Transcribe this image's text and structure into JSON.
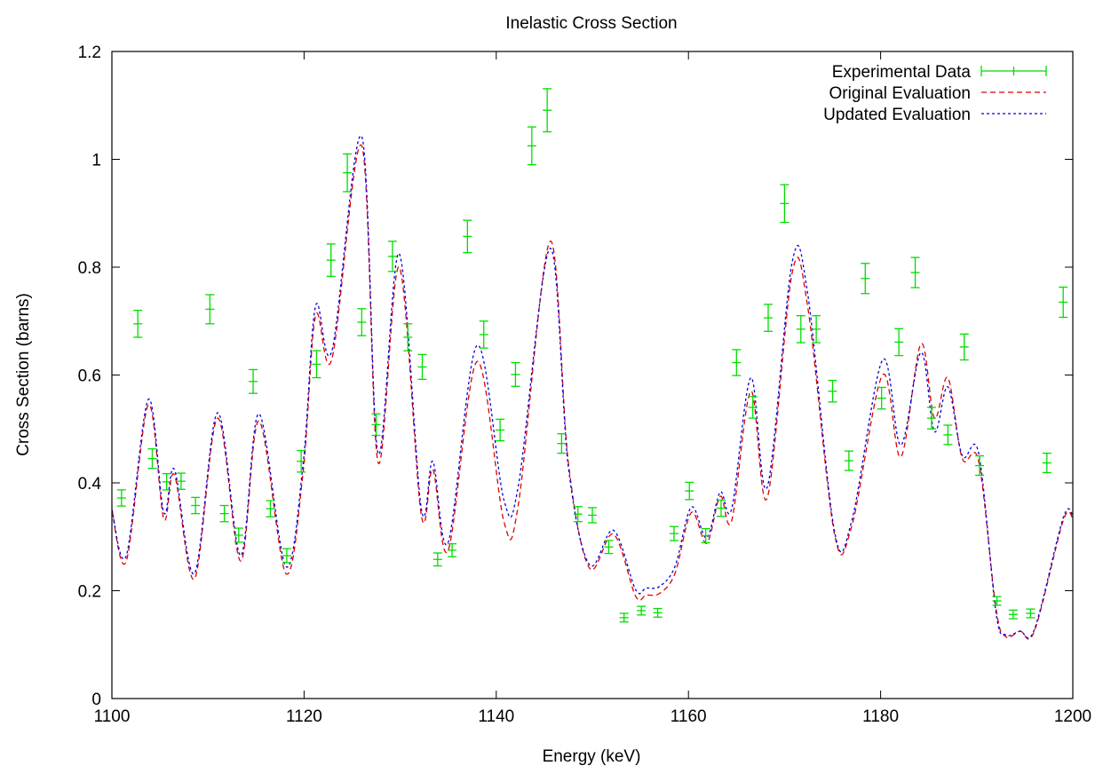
{
  "chart_data": {
    "type": "line",
    "title": "Inelastic Cross Section",
    "xlabel": "Energy (keV)",
    "ylabel": "Cross Section (barns)",
    "xlim": [
      1100,
      1200
    ],
    "ylim": [
      0,
      1.2
    ],
    "x_ticks": [
      1100,
      1120,
      1140,
      1160,
      1180,
      1200
    ],
    "x_tick_labels": [
      "1100",
      "1120",
      "1140",
      "1160",
      "1180",
      "1200"
    ],
    "y_ticks": [
      0,
      0.2,
      0.4,
      0.6,
      0.8,
      1.0,
      1.2
    ],
    "y_tick_labels": [
      "0",
      "0.2",
      "0.4",
      "0.6",
      "0.8",
      "1",
      "1.2"
    ],
    "grid": false,
    "legend_position": "top-right",
    "colors": {
      "experimental": "#00dd00",
      "original": "#e00000",
      "updated": "#0000e0"
    },
    "series": [
      {
        "name": "Experimental Data",
        "style": "errorbars",
        "points": [
          [
            1101.0,
            0.372,
            0.015
          ],
          [
            1102.7,
            0.695,
            0.025
          ],
          [
            1104.2,
            0.445,
            0.018
          ],
          [
            1105.7,
            0.402,
            0.015
          ],
          [
            1107.2,
            0.403,
            0.015
          ],
          [
            1108.7,
            0.358,
            0.015
          ],
          [
            1110.2,
            0.722,
            0.027
          ],
          [
            1111.7,
            0.343,
            0.015
          ],
          [
            1113.2,
            0.303,
            0.013
          ],
          [
            1114.7,
            0.588,
            0.022
          ],
          [
            1116.5,
            0.352,
            0.015
          ],
          [
            1118.2,
            0.265,
            0.013
          ],
          [
            1119.7,
            0.44,
            0.02
          ],
          [
            1121.3,
            0.62,
            0.025
          ],
          [
            1122.8,
            0.813,
            0.03
          ],
          [
            1124.5,
            0.975,
            0.035
          ],
          [
            1126.0,
            0.698,
            0.025
          ],
          [
            1127.5,
            0.508,
            0.02
          ],
          [
            1129.2,
            0.82,
            0.028
          ],
          [
            1130.8,
            0.67,
            0.025
          ],
          [
            1132.3,
            0.615,
            0.023
          ],
          [
            1133.9,
            0.258,
            0.012
          ],
          [
            1135.4,
            0.275,
            0.012
          ],
          [
            1137.0,
            0.857,
            0.03
          ],
          [
            1138.7,
            0.675,
            0.025
          ],
          [
            1140.4,
            0.498,
            0.02
          ],
          [
            1142.0,
            0.601,
            0.022
          ],
          [
            1143.7,
            1.025,
            0.035
          ],
          [
            1145.3,
            1.091,
            0.04
          ],
          [
            1146.8,
            0.473,
            0.018
          ],
          [
            1148.5,
            0.342,
            0.014
          ],
          [
            1150.0,
            0.34,
            0.014
          ],
          [
            1151.7,
            0.281,
            0.012
          ],
          [
            1153.3,
            0.15,
            0.008
          ],
          [
            1155.1,
            0.163,
            0.008
          ],
          [
            1156.8,
            0.159,
            0.008
          ],
          [
            1158.5,
            0.306,
            0.013
          ],
          [
            1160.1,
            0.385,
            0.016
          ],
          [
            1161.8,
            0.302,
            0.013
          ],
          [
            1163.4,
            0.353,
            0.015
          ],
          [
            1165.0,
            0.623,
            0.024
          ],
          [
            1166.7,
            0.54,
            0.02
          ],
          [
            1168.3,
            0.706,
            0.025
          ],
          [
            1170.0,
            0.918,
            0.035
          ],
          [
            1171.7,
            0.685,
            0.025
          ],
          [
            1173.3,
            0.685,
            0.025
          ],
          [
            1175.0,
            0.57,
            0.02
          ],
          [
            1176.7,
            0.441,
            0.018
          ],
          [
            1178.4,
            0.779,
            0.028
          ],
          [
            1180.1,
            0.557,
            0.02
          ],
          [
            1181.9,
            0.661,
            0.025
          ],
          [
            1183.6,
            0.79,
            0.028
          ],
          [
            1185.3,
            0.52,
            0.02
          ],
          [
            1187.0,
            0.489,
            0.018
          ],
          [
            1188.7,
            0.652,
            0.024
          ],
          [
            1190.3,
            0.432,
            0.018
          ],
          [
            1192.1,
            0.181,
            0.008
          ],
          [
            1193.8,
            0.156,
            0.008
          ],
          [
            1195.6,
            0.158,
            0.008
          ],
          [
            1197.3,
            0.437,
            0.018
          ],
          [
            1199.0,
            0.735,
            0.028
          ]
        ]
      },
      {
        "name": "Original Evaluation",
        "style": "dashed",
        "x": [
          1100.0,
          1101.5,
          1103.8,
          1105.4,
          1106.5,
          1108.6,
          1111.0,
          1113.4,
          1115.3,
          1118.1,
          1119.9,
          1121.2,
          1122.9,
          1126.0,
          1127.7,
          1129.9,
          1132.2,
          1133.4,
          1135.0,
          1138.0,
          1140.8,
          1142.3,
          1145.6,
          1147.5,
          1149.7,
          1152.2,
          1154.5,
          1155.6,
          1157.0,
          1158.6,
          1160.3,
          1161.9,
          1163.3,
          1164.5,
          1166.5,
          1168.2,
          1170.8,
          1172.4,
          1175.2,
          1177.0,
          1180.2,
          1182.1,
          1184.2,
          1185.6,
          1187.0,
          1188.5,
          1190.2,
          1192.0,
          1193.0,
          1194.5,
          1196.0,
          1199.0,
          1200.0
        ],
        "y": [
          0.35,
          0.255,
          0.545,
          0.333,
          0.415,
          0.222,
          0.52,
          0.255,
          0.515,
          0.232,
          0.42,
          0.71,
          0.63,
          1.025,
          0.438,
          0.8,
          0.34,
          0.425,
          0.275,
          0.625,
          0.328,
          0.36,
          0.848,
          0.438,
          0.242,
          0.305,
          0.19,
          0.192,
          0.195,
          0.232,
          0.345,
          0.288,
          0.375,
          0.33,
          0.57,
          0.372,
          0.79,
          0.728,
          0.305,
          0.32,
          0.6,
          0.448,
          0.658,
          0.52,
          0.595,
          0.445,
          0.44,
          0.168,
          0.115,
          0.125,
          0.125,
          0.33,
          0.335
        ]
      },
      {
        "name": "Updated Evaluation",
        "style": "dotted",
        "x": [
          1100.0,
          1101.5,
          1103.8,
          1105.4,
          1106.5,
          1108.6,
          1111.0,
          1113.4,
          1115.3,
          1118.1,
          1119.9,
          1121.2,
          1122.9,
          1126.0,
          1127.7,
          1129.9,
          1132.2,
          1133.4,
          1135.0,
          1138.0,
          1140.8,
          1142.3,
          1145.6,
          1147.5,
          1149.7,
          1152.2,
          1154.5,
          1155.6,
          1157.0,
          1158.6,
          1160.3,
          1161.9,
          1163.3,
          1164.5,
          1166.5,
          1168.2,
          1170.8,
          1172.4,
          1175.2,
          1177.0,
          1180.2,
          1182.1,
          1184.2,
          1185.6,
          1187.0,
          1188.5,
          1190.2,
          1192.0,
          1193.0,
          1194.5,
          1196.0,
          1199.0,
          1200.0
        ],
        "y": [
          0.35,
          0.265,
          0.555,
          0.345,
          0.425,
          0.232,
          0.53,
          0.265,
          0.528,
          0.245,
          0.435,
          0.728,
          0.645,
          1.042,
          0.455,
          0.825,
          0.352,
          0.44,
          0.29,
          0.655,
          0.368,
          0.395,
          0.835,
          0.43,
          0.248,
          0.312,
          0.202,
          0.205,
          0.208,
          0.245,
          0.355,
          0.298,
          0.383,
          0.352,
          0.595,
          0.392,
          0.81,
          0.752,
          0.31,
          0.33,
          0.628,
          0.47,
          0.642,
          0.495,
          0.578,
          0.45,
          0.455,
          0.16,
          0.118,
          0.125,
          0.128,
          0.335,
          0.34
        ]
      }
    ]
  }
}
